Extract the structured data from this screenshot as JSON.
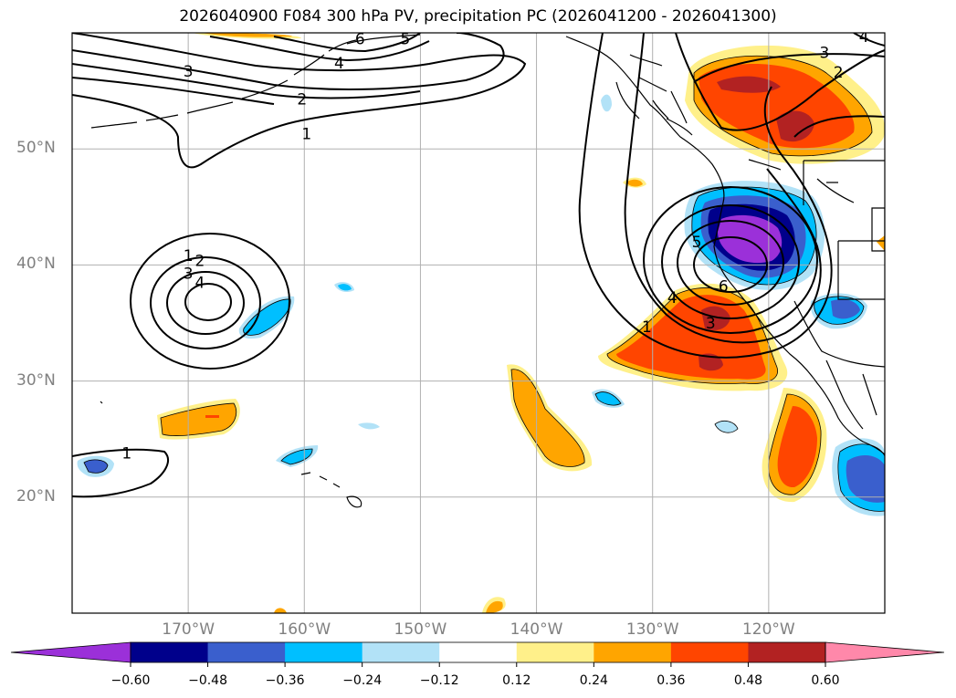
{
  "title": "2026040900 F084 300 hPa PV, precipitation PC (2026041200 - 2026041300)",
  "map": {
    "projection": "lat-lon",
    "lon_range_deg": [
      -180,
      -110
    ],
    "lat_range_deg": [
      10,
      60
    ],
    "lat_ticks": [
      {
        "value": 50,
        "label": "50°N"
      },
      {
        "value": 40,
        "label": "40°N"
      },
      {
        "value": 30,
        "label": "30°N"
      },
      {
        "value": 20,
        "label": "20°N"
      }
    ],
    "lon_ticks": [
      {
        "value": -170,
        "label": "170°W"
      },
      {
        "value": -160,
        "label": "160°W"
      },
      {
        "value": -150,
        "label": "150°W"
      },
      {
        "value": -140,
        "label": "140°W"
      },
      {
        "value": -130,
        "label": "130°W"
      },
      {
        "value": -120,
        "label": "120°W"
      }
    ],
    "grid": true,
    "pv_contour_labels": [
      {
        "text": "1",
        "lon": -170,
        "lat": 40.8
      },
      {
        "text": "2",
        "lon": -169.0,
        "lat": 40.4
      },
      {
        "text": "3",
        "lon": -170.0,
        "lat": 39.3
      },
      {
        "text": "4",
        "lon": -169.0,
        "lat": 38.5
      },
      {
        "text": "1",
        "lon": -175.3,
        "lat": 23.8
      },
      {
        "text": "3",
        "lon": -170.0,
        "lat": 56.7
      },
      {
        "text": "1",
        "lon": -159.8,
        "lat": 51.3
      },
      {
        "text": "2",
        "lon": -160.2,
        "lat": 54.3
      },
      {
        "text": "4",
        "lon": -157.0,
        "lat": 57.4
      },
      {
        "text": "6",
        "lon": -155.2,
        "lat": 59.5
      },
      {
        "text": "5",
        "lon": -151.3,
        "lat": 59.5
      },
      {
        "text": "3",
        "lon": -115.2,
        "lat": 58.3
      },
      {
        "text": "2",
        "lon": -114.0,
        "lat": 56.6
      },
      {
        "text": "4",
        "lon": -111.8,
        "lat": 59.7
      },
      {
        "text": "1",
        "lon": -130.5,
        "lat": 34.7
      },
      {
        "text": "4",
        "lon": -128.3,
        "lat": 37.2
      },
      {
        "text": "5",
        "lon": -126.2,
        "lat": 42.0
      },
      {
        "text": "6",
        "lon": -123.9,
        "lat": 38.2
      },
      {
        "text": "3",
        "lon": -125.0,
        "lat": 35.0
      }
    ]
  },
  "colorbar": {
    "colors": [
      "#9b30d9",
      "#00008b",
      "#3a5fcd",
      "#00bfff",
      "#b2e2f7",
      "#ffffff",
      "#fff08a",
      "#ffa500",
      "#ff4500",
      "#b22222",
      "#ff88aa"
    ],
    "ticks": [
      "−0.60",
      "−0.48",
      "−0.36",
      "−0.24",
      "−0.12",
      "0.12",
      "0.24",
      "0.36",
      "0.48",
      "0.60"
    ]
  }
}
